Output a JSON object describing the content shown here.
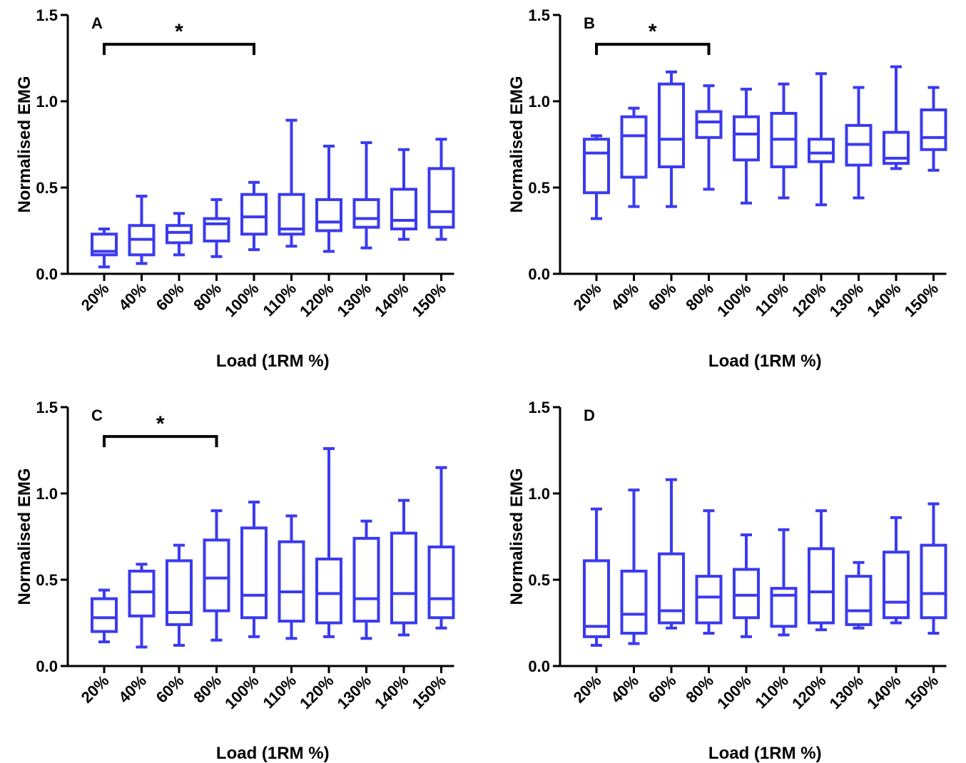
{
  "figure": {
    "box_color": "#3a3af0",
    "axis_color": "#000000"
  },
  "chart_data": [
    {
      "panel": "A",
      "type": "box",
      "xlabel": "Load (1RM %)",
      "ylabel": "Normalised EMG",
      "ylim": [
        0.0,
        1.5
      ],
      "yticks": [
        "0.0",
        "0.5",
        "1.0",
        "1.5"
      ],
      "categories": [
        "20%",
        "40%",
        "60%",
        "80%",
        "100%",
        "110%",
        "120%",
        "130%",
        "140%",
        "150%"
      ],
      "boxes": [
        {
          "min": 0.04,
          "q1": 0.11,
          "median": 0.13,
          "q3": 0.23,
          "max": 0.26
        },
        {
          "min": 0.06,
          "q1": 0.11,
          "median": 0.2,
          "q3": 0.28,
          "max": 0.45
        },
        {
          "min": 0.11,
          "q1": 0.18,
          "median": 0.24,
          "q3": 0.28,
          "max": 0.35
        },
        {
          "min": 0.1,
          "q1": 0.19,
          "median": 0.29,
          "q3": 0.32,
          "max": 0.43
        },
        {
          "min": 0.14,
          "q1": 0.23,
          "median": 0.33,
          "q3": 0.46,
          "max": 0.53
        },
        {
          "min": 0.16,
          "q1": 0.23,
          "median": 0.26,
          "q3": 0.46,
          "max": 0.89
        },
        {
          "min": 0.13,
          "q1": 0.25,
          "median": 0.3,
          "q3": 0.43,
          "max": 0.74
        },
        {
          "min": 0.15,
          "q1": 0.27,
          "median": 0.32,
          "q3": 0.43,
          "max": 0.76
        },
        {
          "min": 0.2,
          "q1": 0.26,
          "median": 0.31,
          "q3": 0.49,
          "max": 0.72
        },
        {
          "min": 0.2,
          "q1": 0.27,
          "median": 0.36,
          "q3": 0.61,
          "max": 0.78
        }
      ],
      "significance": {
        "from": "20%",
        "to": "100%",
        "symbol": "*",
        "y": 1.33
      }
    },
    {
      "panel": "B",
      "type": "box",
      "xlabel": "Load (1RM %)",
      "ylabel": "Normalised EMG",
      "ylim": [
        0.0,
        1.5
      ],
      "yticks": [
        "0.0",
        "0.5",
        "1.0",
        "1.5"
      ],
      "categories": [
        "20%",
        "40%",
        "60%",
        "80%",
        "100%",
        "110%",
        "120%",
        "130%",
        "140%",
        "150%"
      ],
      "boxes": [
        {
          "min": 0.32,
          "q1": 0.47,
          "median": 0.7,
          "q3": 0.78,
          "max": 0.8
        },
        {
          "min": 0.39,
          "q1": 0.56,
          "median": 0.8,
          "q3": 0.91,
          "max": 0.96
        },
        {
          "min": 0.39,
          "q1": 0.62,
          "median": 0.78,
          "q3": 1.1,
          "max": 1.17
        },
        {
          "min": 0.49,
          "q1": 0.79,
          "median": 0.88,
          "q3": 0.94,
          "max": 1.09
        },
        {
          "min": 0.41,
          "q1": 0.66,
          "median": 0.81,
          "q3": 0.91,
          "max": 1.07
        },
        {
          "min": 0.44,
          "q1": 0.62,
          "median": 0.78,
          "q3": 0.93,
          "max": 1.1
        },
        {
          "min": 0.4,
          "q1": 0.65,
          "median": 0.7,
          "q3": 0.78,
          "max": 1.16
        },
        {
          "min": 0.44,
          "q1": 0.63,
          "median": 0.75,
          "q3": 0.86,
          "max": 1.08
        },
        {
          "min": 0.61,
          "q1": 0.64,
          "median": 0.67,
          "q3": 0.82,
          "max": 1.2
        },
        {
          "min": 0.6,
          "q1": 0.72,
          "median": 0.79,
          "q3": 0.95,
          "max": 1.08
        }
      ],
      "significance": {
        "from": "20%",
        "to": "80%",
        "symbol": "*",
        "y": 1.33
      }
    },
    {
      "panel": "C",
      "type": "box",
      "xlabel": "Load (1RM %)",
      "ylabel": "Normalised EMG",
      "ylim": [
        0.0,
        1.5
      ],
      "yticks": [
        "0.0",
        "0.5",
        "1.0",
        "1.5"
      ],
      "categories": [
        "20%",
        "40%",
        "60%",
        "80%",
        "100%",
        "110%",
        "120%",
        "130%",
        "140%",
        "150%"
      ],
      "boxes": [
        {
          "min": 0.14,
          "q1": 0.2,
          "median": 0.28,
          "q3": 0.39,
          "max": 0.44
        },
        {
          "min": 0.11,
          "q1": 0.29,
          "median": 0.43,
          "q3": 0.55,
          "max": 0.59
        },
        {
          "min": 0.12,
          "q1": 0.24,
          "median": 0.31,
          "q3": 0.61,
          "max": 0.7
        },
        {
          "min": 0.15,
          "q1": 0.32,
          "median": 0.51,
          "q3": 0.73,
          "max": 0.9
        },
        {
          "min": 0.17,
          "q1": 0.28,
          "median": 0.41,
          "q3": 0.8,
          "max": 0.95
        },
        {
          "min": 0.16,
          "q1": 0.26,
          "median": 0.43,
          "q3": 0.72,
          "max": 0.87
        },
        {
          "min": 0.17,
          "q1": 0.25,
          "median": 0.42,
          "q3": 0.62,
          "max": 1.26
        },
        {
          "min": 0.16,
          "q1": 0.26,
          "median": 0.39,
          "q3": 0.74,
          "max": 0.84
        },
        {
          "min": 0.18,
          "q1": 0.25,
          "median": 0.42,
          "q3": 0.77,
          "max": 0.96
        },
        {
          "min": 0.22,
          "q1": 0.28,
          "median": 0.39,
          "q3": 0.69,
          "max": 1.15
        }
      ],
      "significance": {
        "from": "20%",
        "to": "80%",
        "symbol": "*",
        "y": 1.33
      }
    },
    {
      "panel": "D",
      "type": "box",
      "xlabel": "Load (1RM %)",
      "ylabel": "Normalised EMG",
      "ylim": [
        0.0,
        1.5
      ],
      "yticks": [
        "0.0",
        "0.5",
        "1.0",
        "1.5"
      ],
      "categories": [
        "20%",
        "40%",
        "60%",
        "80%",
        "100%",
        "110%",
        "120%",
        "130%",
        "140%",
        "150%"
      ],
      "boxes": [
        {
          "min": 0.12,
          "q1": 0.17,
          "median": 0.23,
          "q3": 0.61,
          "max": 0.91
        },
        {
          "min": 0.13,
          "q1": 0.19,
          "median": 0.3,
          "q3": 0.55,
          "max": 1.02
        },
        {
          "min": 0.22,
          "q1": 0.25,
          "median": 0.32,
          "q3": 0.65,
          "max": 1.08
        },
        {
          "min": 0.19,
          "q1": 0.25,
          "median": 0.4,
          "q3": 0.52,
          "max": 0.9
        },
        {
          "min": 0.17,
          "q1": 0.28,
          "median": 0.41,
          "q3": 0.56,
          "max": 0.76
        },
        {
          "min": 0.18,
          "q1": 0.23,
          "median": 0.41,
          "q3": 0.45,
          "max": 0.79
        },
        {
          "min": 0.21,
          "q1": 0.25,
          "median": 0.43,
          "q3": 0.68,
          "max": 0.9
        },
        {
          "min": 0.22,
          "q1": 0.24,
          "median": 0.32,
          "q3": 0.52,
          "max": 0.6
        },
        {
          "min": 0.25,
          "q1": 0.28,
          "median": 0.37,
          "q3": 0.66,
          "max": 0.86
        },
        {
          "min": 0.19,
          "q1": 0.28,
          "median": 0.42,
          "q3": 0.7,
          "max": 0.94
        }
      ]
    }
  ]
}
